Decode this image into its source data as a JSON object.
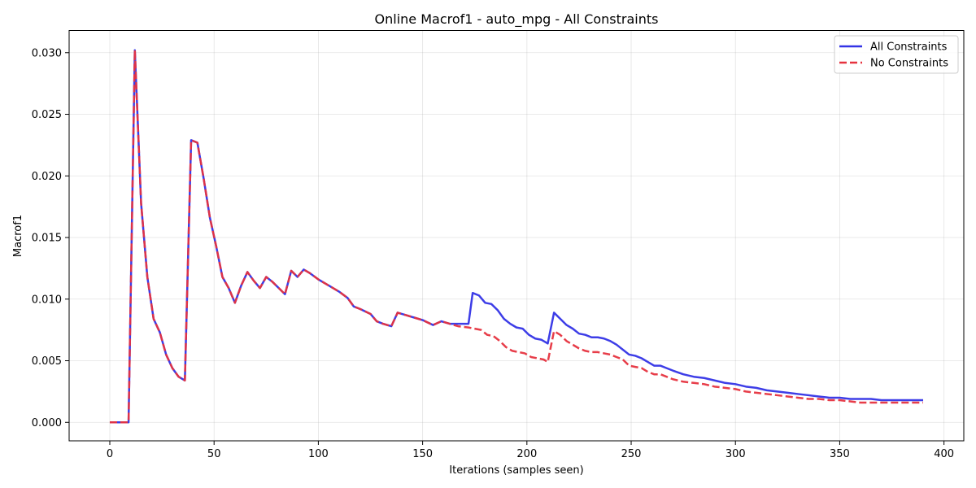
{
  "chart_data": {
    "type": "line",
    "title": "Online Macrof1 - auto_mpg - All Constraints",
    "xlabel": "Iterations (samples seen)",
    "ylabel": "Macrof1",
    "xlim": [
      -19.5,
      409.5
    ],
    "ylim": [
      -0.0015,
      0.0318
    ],
    "xticks": [
      0,
      50,
      100,
      150,
      200,
      250,
      300,
      350,
      400
    ],
    "xtick_labels": [
      "0",
      "50",
      "100",
      "150",
      "200",
      "250",
      "300",
      "350",
      "400"
    ],
    "yticks": [
      0.0,
      0.005,
      0.01,
      0.015,
      0.02,
      0.025,
      0.03
    ],
    "ytick_labels": [
      "0.000",
      "0.005",
      "0.010",
      "0.015",
      "0.020",
      "0.025",
      "0.030"
    ],
    "grid": true,
    "legend_position": "top-right",
    "series": [
      {
        "name": "All Constraints",
        "color": "#3333e6",
        "style": "solid",
        "points": [
          [
            0,
            0.0
          ],
          [
            3,
            0.0
          ],
          [
            6,
            0.0
          ],
          [
            9,
            0.0
          ],
          [
            12,
            0.0302
          ],
          [
            15,
            0.0178
          ],
          [
            18,
            0.0118
          ],
          [
            21,
            0.0084
          ],
          [
            24,
            0.0073
          ],
          [
            27,
            0.0055
          ],
          [
            30,
            0.0044
          ],
          [
            33,
            0.0037
          ],
          [
            36,
            0.0034
          ],
          [
            39,
            0.0229
          ],
          [
            42,
            0.0227
          ],
          [
            45,
            0.0198
          ],
          [
            48,
            0.0166
          ],
          [
            51,
            0.0143
          ],
          [
            54,
            0.0118
          ],
          [
            57,
            0.0109
          ],
          [
            60,
            0.0097
          ],
          [
            63,
            0.0111
          ],
          [
            66,
            0.0122
          ],
          [
            69,
            0.0115
          ],
          [
            72,
            0.0109
          ],
          [
            75,
            0.0118
          ],
          [
            78,
            0.0114
          ],
          [
            81,
            0.0109
          ],
          [
            84,
            0.0104
          ],
          [
            87,
            0.0123
          ],
          [
            90,
            0.0118
          ],
          [
            93,
            0.0124
          ],
          [
            96,
            0.0121
          ],
          [
            100,
            0.0116
          ],
          [
            105,
            0.0111
          ],
          [
            110,
            0.0106
          ],
          [
            114,
            0.0101
          ],
          [
            117,
            0.0094
          ],
          [
            120,
            0.0092
          ],
          [
            125,
            0.0088
          ],
          [
            128,
            0.0082
          ],
          [
            131,
            0.008
          ],
          [
            135,
            0.0078
          ],
          [
            138,
            0.0089
          ],
          [
            142,
            0.0087
          ],
          [
            146,
            0.0085
          ],
          [
            150,
            0.0083
          ],
          [
            155,
            0.0079
          ],
          [
            159,
            0.0082
          ],
          [
            163,
            0.008
          ],
          [
            167,
            0.008
          ],
          [
            172,
            0.008
          ],
          [
            174,
            0.0105
          ],
          [
            177,
            0.0103
          ],
          [
            180,
            0.0097
          ],
          [
            183,
            0.0096
          ],
          [
            186,
            0.0091
          ],
          [
            189,
            0.0084
          ],
          [
            192,
            0.008
          ],
          [
            195,
            0.0077
          ],
          [
            198,
            0.0076
          ],
          [
            201,
            0.0071
          ],
          [
            204,
            0.0068
          ],
          [
            207,
            0.0067
          ],
          [
            210,
            0.0064
          ],
          [
            213,
            0.0089
          ],
          [
            216,
            0.0084
          ],
          [
            219,
            0.0079
          ],
          [
            222,
            0.0076
          ],
          [
            225,
            0.0072
          ],
          [
            228,
            0.0071
          ],
          [
            231,
            0.0069
          ],
          [
            234,
            0.0069
          ],
          [
            237,
            0.0068
          ],
          [
            240,
            0.0066
          ],
          [
            243,
            0.0063
          ],
          [
            246,
            0.0059
          ],
          [
            249,
            0.0055
          ],
          [
            252,
            0.0054
          ],
          [
            255,
            0.0052
          ],
          [
            258,
            0.0049
          ],
          [
            261,
            0.0046
          ],
          [
            264,
            0.0046
          ],
          [
            267,
            0.0044
          ],
          [
            270,
            0.0042
          ],
          [
            275,
            0.0039
          ],
          [
            280,
            0.0037
          ],
          [
            285,
            0.0036
          ],
          [
            290,
            0.0034
          ],
          [
            295,
            0.0032
          ],
          [
            300,
            0.0031
          ],
          [
            305,
            0.0029
          ],
          [
            310,
            0.0028
          ],
          [
            315,
            0.0026
          ],
          [
            320,
            0.0025
          ],
          [
            325,
            0.0024
          ],
          [
            330,
            0.0023
          ],
          [
            335,
            0.0022
          ],
          [
            340,
            0.0021
          ],
          [
            345,
            0.002
          ],
          [
            350,
            0.002
          ],
          [
            355,
            0.0019
          ],
          [
            360,
            0.0019
          ],
          [
            365,
            0.0019
          ],
          [
            370,
            0.0018
          ],
          [
            375,
            0.0018
          ],
          [
            380,
            0.0018
          ],
          [
            385,
            0.0018
          ],
          [
            390,
            0.0018
          ]
        ]
      },
      {
        "name": "No Constraints",
        "color": "#e6333f",
        "style": "dashed",
        "points": [
          [
            0,
            0.0
          ],
          [
            3,
            0.0
          ],
          [
            6,
            0.0
          ],
          [
            9,
            0.0
          ],
          [
            12,
            0.0302
          ],
          [
            15,
            0.0178
          ],
          [
            18,
            0.0118
          ],
          [
            21,
            0.0084
          ],
          [
            24,
            0.0073
          ],
          [
            27,
            0.0055
          ],
          [
            30,
            0.0044
          ],
          [
            33,
            0.0037
          ],
          [
            36,
            0.0034
          ],
          [
            39,
            0.0229
          ],
          [
            42,
            0.0227
          ],
          [
            45,
            0.0198
          ],
          [
            48,
            0.0166
          ],
          [
            51,
            0.0143
          ],
          [
            54,
            0.0118
          ],
          [
            57,
            0.0109
          ],
          [
            60,
            0.0097
          ],
          [
            63,
            0.0111
          ],
          [
            66,
            0.0122
          ],
          [
            69,
            0.0115
          ],
          [
            72,
            0.0109
          ],
          [
            75,
            0.0118
          ],
          [
            78,
            0.0114
          ],
          [
            81,
            0.0109
          ],
          [
            84,
            0.0104
          ],
          [
            87,
            0.0123
          ],
          [
            90,
            0.0118
          ],
          [
            93,
            0.0124
          ],
          [
            96,
            0.0121
          ],
          [
            100,
            0.0116
          ],
          [
            105,
            0.0111
          ],
          [
            110,
            0.0106
          ],
          [
            114,
            0.0101
          ],
          [
            117,
            0.0094
          ],
          [
            120,
            0.0092
          ],
          [
            125,
            0.0088
          ],
          [
            128,
            0.0082
          ],
          [
            131,
            0.008
          ],
          [
            135,
            0.0078
          ],
          [
            138,
            0.0089
          ],
          [
            142,
            0.0087
          ],
          [
            146,
            0.0085
          ],
          [
            150,
            0.0083
          ],
          [
            155,
            0.0079
          ],
          [
            159,
            0.0082
          ],
          [
            163,
            0.008
          ],
          [
            167,
            0.0078
          ],
          [
            172,
            0.0077
          ],
          [
            175,
            0.0076
          ],
          [
            178,
            0.0075
          ],
          [
            181,
            0.0071
          ],
          [
            184,
            0.007
          ],
          [
            187,
            0.0066
          ],
          [
            190,
            0.0061
          ],
          [
            193,
            0.0058
          ],
          [
            196,
            0.0057
          ],
          [
            199,
            0.0056
          ],
          [
            202,
            0.0053
          ],
          [
            205,
            0.0052
          ],
          [
            208,
            0.0051
          ],
          [
            210,
            0.0049
          ],
          [
            213,
            0.0074
          ],
          [
            216,
            0.0071
          ],
          [
            219,
            0.0066
          ],
          [
            222,
            0.0063
          ],
          [
            225,
            0.006
          ],
          [
            228,
            0.0058
          ],
          [
            231,
            0.0057
          ],
          [
            234,
            0.0057
          ],
          [
            237,
            0.0056
          ],
          [
            240,
            0.0055
          ],
          [
            243,
            0.0053
          ],
          [
            246,
            0.0051
          ],
          [
            249,
            0.0046
          ],
          [
            252,
            0.0045
          ],
          [
            255,
            0.0044
          ],
          [
            258,
            0.0041
          ],
          [
            261,
            0.0039
          ],
          [
            264,
            0.0039
          ],
          [
            267,
            0.0037
          ],
          [
            270,
            0.0035
          ],
          [
            275,
            0.0033
          ],
          [
            280,
            0.0032
          ],
          [
            285,
            0.0031
          ],
          [
            290,
            0.0029
          ],
          [
            295,
            0.0028
          ],
          [
            300,
            0.0027
          ],
          [
            305,
            0.0025
          ],
          [
            310,
            0.0024
          ],
          [
            315,
            0.0023
          ],
          [
            320,
            0.0022
          ],
          [
            325,
            0.0021
          ],
          [
            330,
            0.002
          ],
          [
            335,
            0.0019
          ],
          [
            340,
            0.0019
          ],
          [
            345,
            0.0018
          ],
          [
            350,
            0.0018
          ],
          [
            355,
            0.0017
          ],
          [
            360,
            0.0016
          ],
          [
            365,
            0.0016
          ],
          [
            370,
            0.0016
          ],
          [
            375,
            0.0016
          ],
          [
            380,
            0.0016
          ],
          [
            385,
            0.0016
          ],
          [
            390,
            0.0016
          ]
        ]
      }
    ]
  }
}
